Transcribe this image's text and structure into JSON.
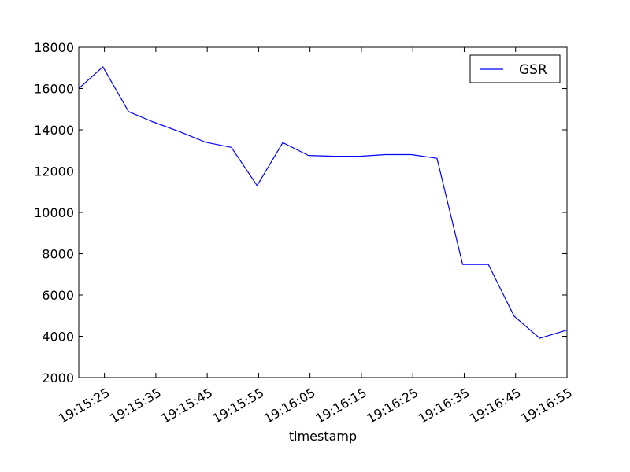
{
  "chart_data": {
    "type": "line",
    "title": "",
    "xlabel": "timestamp",
    "ylabel": "",
    "x_range_seconds": [
      0,
      95
    ],
    "ylim": [
      2000,
      18000
    ],
    "y_ticks": [
      2000,
      4000,
      6000,
      8000,
      10000,
      12000,
      14000,
      16000,
      18000
    ],
    "x_ticks": [
      {
        "t": 5,
        "label": "19:15:25"
      },
      {
        "t": 15,
        "label": "19:15:35"
      },
      {
        "t": 25,
        "label": "19:15:45"
      },
      {
        "t": 35,
        "label": "19:15:55"
      },
      {
        "t": 45,
        "label": "19:16:05"
      },
      {
        "t": 55,
        "label": "19:16:15"
      },
      {
        "t": 65,
        "label": "19:16:25"
      },
      {
        "t": 75,
        "label": "19:16:35"
      },
      {
        "t": 85,
        "label": "19:16:45"
      },
      {
        "t": 95,
        "label": "19:16:55"
      }
    ],
    "legend": {
      "location": "top-right"
    },
    "series": [
      {
        "name": "GSR",
        "color": "#0000ff",
        "x": [
          0,
          4.7,
          9.7,
          14.3,
          19.7,
          24.7,
          29.7,
          34.7,
          39.7,
          44.7,
          49.7,
          54.7,
          59.7,
          64.7,
          69.7,
          74.7,
          79.7,
          84.7,
          89.7,
          95
        ],
        "values": [
          16000,
          17050,
          14880,
          14400,
          13900,
          13400,
          13150,
          11300,
          13380,
          12760,
          12720,
          12720,
          12800,
          12800,
          12620,
          7480,
          7480,
          4980,
          3900,
          4300
        ]
      }
    ]
  }
}
